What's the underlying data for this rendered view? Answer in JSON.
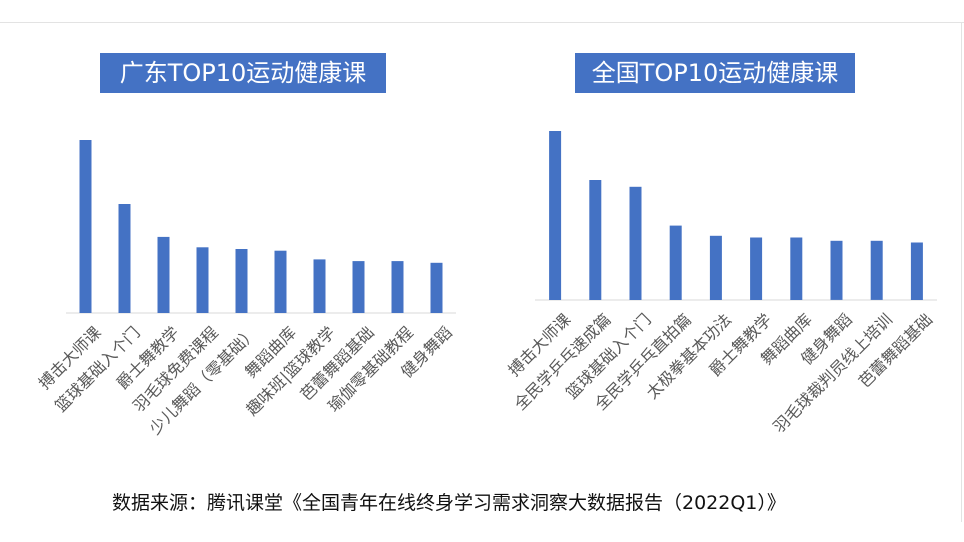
{
  "chart_data": [
    {
      "type": "bar",
      "title": "广东TOP10运动健康课",
      "categories": [
        "搏击大师课",
        "篮球基础入个门",
        "爵士舞教学",
        "羽毛球免费课程",
        "少儿舞蹈（零基础）",
        "舞蹈曲库",
        "趣味班|篮球教学",
        "芭蕾舞蹈基础",
        "瑜伽零基础教程",
        "健身舞蹈"
      ],
      "values": [
        100,
        63,
        44,
        38,
        37,
        36,
        31,
        30,
        30,
        29
      ],
      "ylim": [
        0,
        100
      ],
      "grid": false,
      "color": "#4472c4"
    },
    {
      "type": "bar",
      "title": "全国TOP10运动健康课",
      "categories": [
        "搏击大师课",
        "全民学乒乓速成篇",
        "篮球基础入个门",
        "全民学乒乓直拍篇",
        "太极拳基本功法",
        "爵士舞教学",
        "舞蹈曲库",
        "健身舞蹈",
        "羽毛球裁判员线上培训",
        "芭蕾舞蹈基础"
      ],
      "values": [
        100,
        71,
        67,
        44,
        38,
        37,
        37,
        35,
        35,
        34
      ],
      "ylim": [
        0,
        100
      ],
      "grid": false,
      "color": "#4472c4"
    }
  ],
  "footer": {
    "source": "数据来源：腾讯课堂《全国青年在线终身学习需求洞察大数据报告（2022Q1）》"
  }
}
